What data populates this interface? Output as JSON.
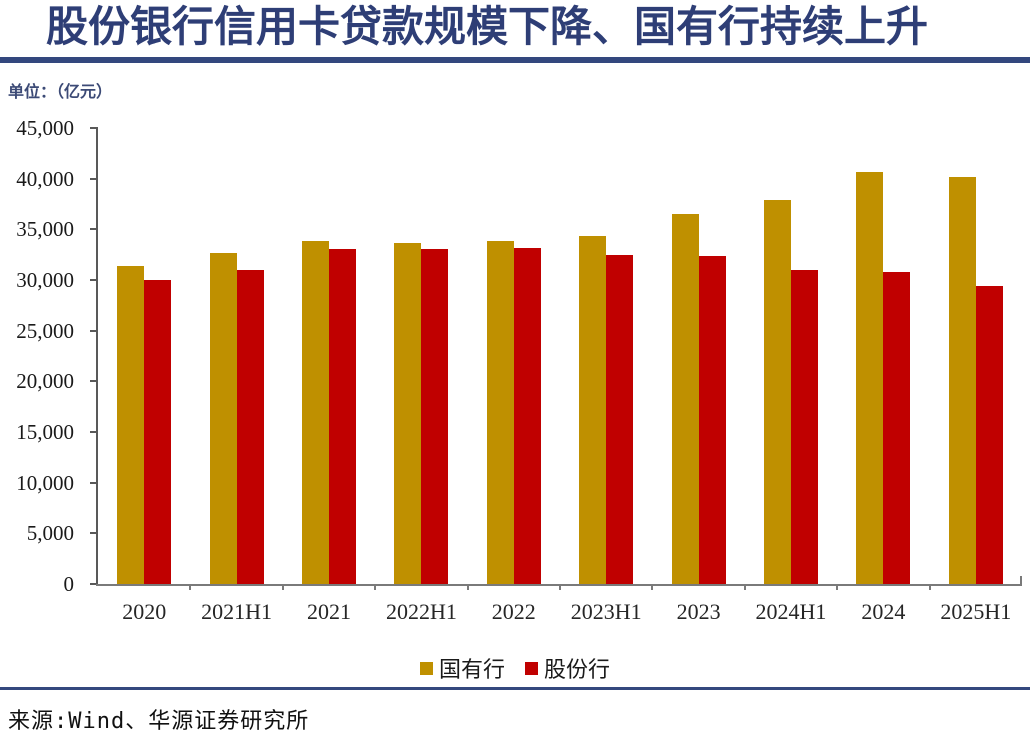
{
  "title": "股份银行信用卡贷款规模下降、国有行持续上升",
  "unit_label": "单位：（亿元）",
  "source": "来源:Wind、华源证券研究所",
  "colors": {
    "title_navy": "#2E3E76",
    "rule_navy": "#33477E",
    "axis_gray": "#595959",
    "state_owned_gold": "#BF9000",
    "joint_stock_red": "#C00000"
  },
  "chart_data": {
    "type": "bar",
    "title": "股份银行信用卡贷款规模下降、国有行持续上升",
    "unit": "亿元",
    "categories": [
      "2020",
      "2021H1",
      "2021",
      "2022H1",
      "2022",
      "2023H1",
      "2023",
      "2024H1",
      "2024",
      "2025H1"
    ],
    "series": [
      {
        "name": "国有行",
        "color": "#BF9000",
        "values": [
          31400,
          32700,
          33800,
          33700,
          33800,
          34300,
          36500,
          37900,
          40700,
          40200
        ]
      },
      {
        "name": "股份行",
        "color": "#C00000",
        "values": [
          30000,
          31000,
          33100,
          33100,
          33200,
          32500,
          32400,
          31000,
          30800,
          29400
        ]
      }
    ],
    "ylim": [
      0,
      45000
    ],
    "ytick_step": 5000,
    "ytick_labels": [
      "45,000",
      "40,000",
      "35,000",
      "30,000",
      "25,000",
      "20,000",
      "15,000",
      "10,000",
      "5,000",
      "0"
    ],
    "grid": false,
    "legend_position": "bottom"
  }
}
